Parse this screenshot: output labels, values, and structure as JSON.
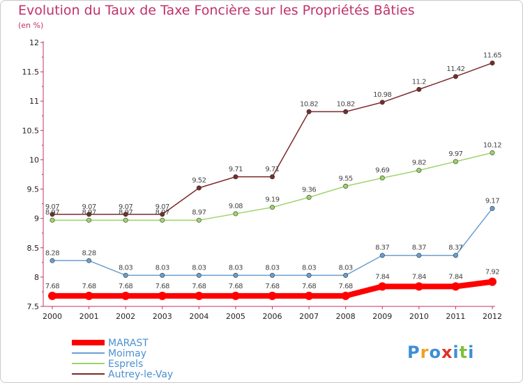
{
  "header": {
    "title": "Evolution du Taux de Taxe Foncière sur les Propriétés Bâties",
    "subtitle": "(en %)"
  },
  "logo": {
    "text": "Proxiti",
    "colors": [
      "#3d8fd6",
      "#f0a020",
      "#3d8fd6",
      "#e0302a",
      "#3d8fd6",
      "#7cc23c",
      "#3d8fd6"
    ]
  },
  "chart_data": {
    "type": "line",
    "x": [
      "2000",
      "2001",
      "2002",
      "2003",
      "2004",
      "2005",
      "2006",
      "2007",
      "2008",
      "2009",
      "2010",
      "2011",
      "2012"
    ],
    "ylim": [
      7.5,
      12
    ],
    "yticks": [
      "7.5",
      "8",
      "8.5",
      "9",
      "9.5",
      "10",
      "10.5",
      "11",
      "11.5",
      "12"
    ],
    "grid": false,
    "legend_position": "bottom-left",
    "series": [
      {
        "name": "Autrey-le-Vay",
        "color": "#7a2a2a",
        "values": [
          9.07,
          9.07,
          9.07,
          9.07,
          9.52,
          9.71,
          9.71,
          10.82,
          10.82,
          10.98,
          11.2,
          11.42,
          11.65
        ],
        "labels": [
          "9.07",
          "9.07",
          "9.07",
          "9.07",
          "9.52",
          "9.71",
          "9.71",
          "10.82",
          "10.82",
          "10.98",
          "11.2",
          "11.42",
          "11.65"
        ]
      },
      {
        "name": "Esprels",
        "color": "#9ed36a",
        "values": [
          8.97,
          8.97,
          8.97,
          8.97,
          8.97,
          9.08,
          9.19,
          9.36,
          9.55,
          9.69,
          9.82,
          9.97,
          10.12
        ],
        "labels": [
          "8.97",
          "8.97",
          "8.97",
          "8.97",
          "8.97",
          "9.08",
          "9.19",
          "9.36",
          "9.55",
          "9.69",
          "9.82",
          "9.97",
          "10.12"
        ]
      },
      {
        "name": "Moimay",
        "color": "#6a9fd0",
        "values": [
          8.28,
          8.28,
          8.03,
          8.03,
          8.03,
          8.03,
          8.03,
          8.03,
          8.03,
          8.37,
          8.37,
          8.37,
          9.17
        ],
        "labels": [
          "8.28",
          "8.28",
          "8.03",
          "8.03",
          "8.03",
          "8.03",
          "8.03",
          "8.03",
          "8.03",
          "8.37",
          "8.37",
          "8.37",
          "9.17"
        ]
      },
      {
        "name": "MARAST",
        "color": "#ff0000",
        "values": [
          7.68,
          7.68,
          7.68,
          7.68,
          7.68,
          7.68,
          7.68,
          7.68,
          7.68,
          7.84,
          7.84,
          7.84,
          7.92
        ],
        "labels": [
          "7.68",
          "7.68",
          "7.68",
          "7.68",
          "7.68",
          "7.68",
          "7.68",
          "7.68",
          "7.68",
          "7.84",
          "7.84",
          "7.84",
          "7.92"
        ]
      }
    ],
    "legend": [
      "MARAST",
      "Moimay",
      "Esprels",
      "Autrey-le-Vay"
    ]
  }
}
